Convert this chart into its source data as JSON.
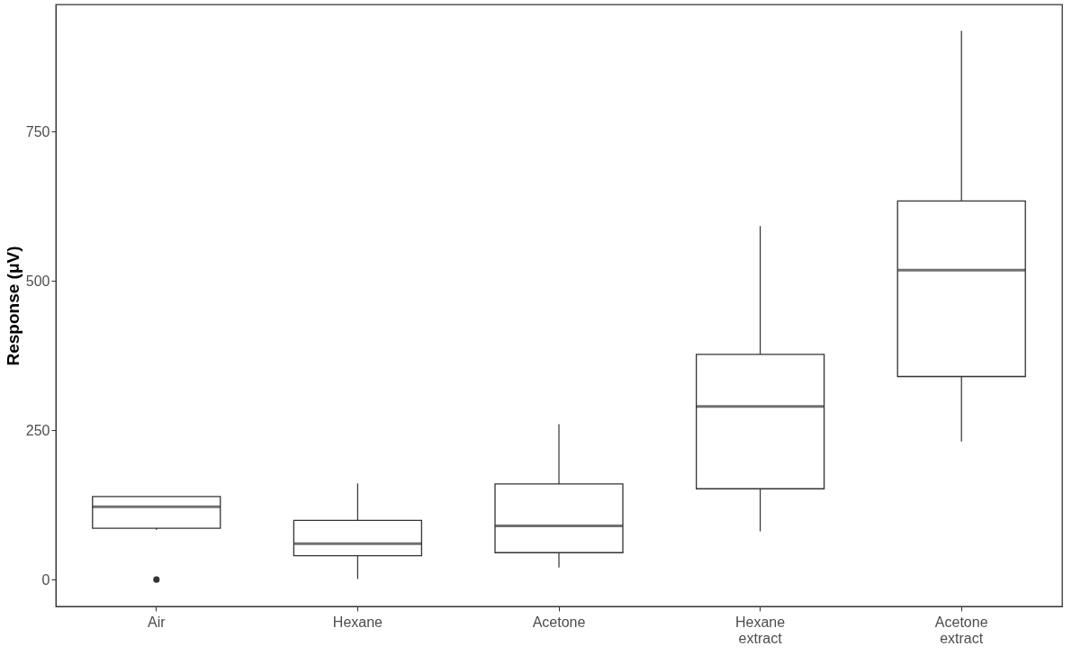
{
  "chart_data": {
    "type": "box",
    "ylabel": "Response (μV)",
    "categories": [
      "Air",
      "Hexane",
      "Acetone",
      "Hexane\nextract",
      "Acetone\nextract"
    ],
    "boxes": [
      {
        "low": 83,
        "q1": 86,
        "median": 122,
        "q3": 139,
        "high": 139,
        "outliers": [
          0
        ]
      },
      {
        "low": 1,
        "q1": 40,
        "median": 60,
        "q3": 99,
        "high": 161
      },
      {
        "low": 20,
        "q1": 45,
        "median": 90,
        "q3": 160,
        "high": 260
      },
      {
        "low": 81,
        "q1": 152,
        "median": 290,
        "q3": 377,
        "high": 592
      },
      {
        "low": 231,
        "q1": 340,
        "median": 518,
        "q3": 634,
        "high": 919
      }
    ],
    "ylim": [
      -45,
      963
    ],
    "yticks": [
      0,
      250,
      500,
      750
    ],
    "grid": false
  }
}
